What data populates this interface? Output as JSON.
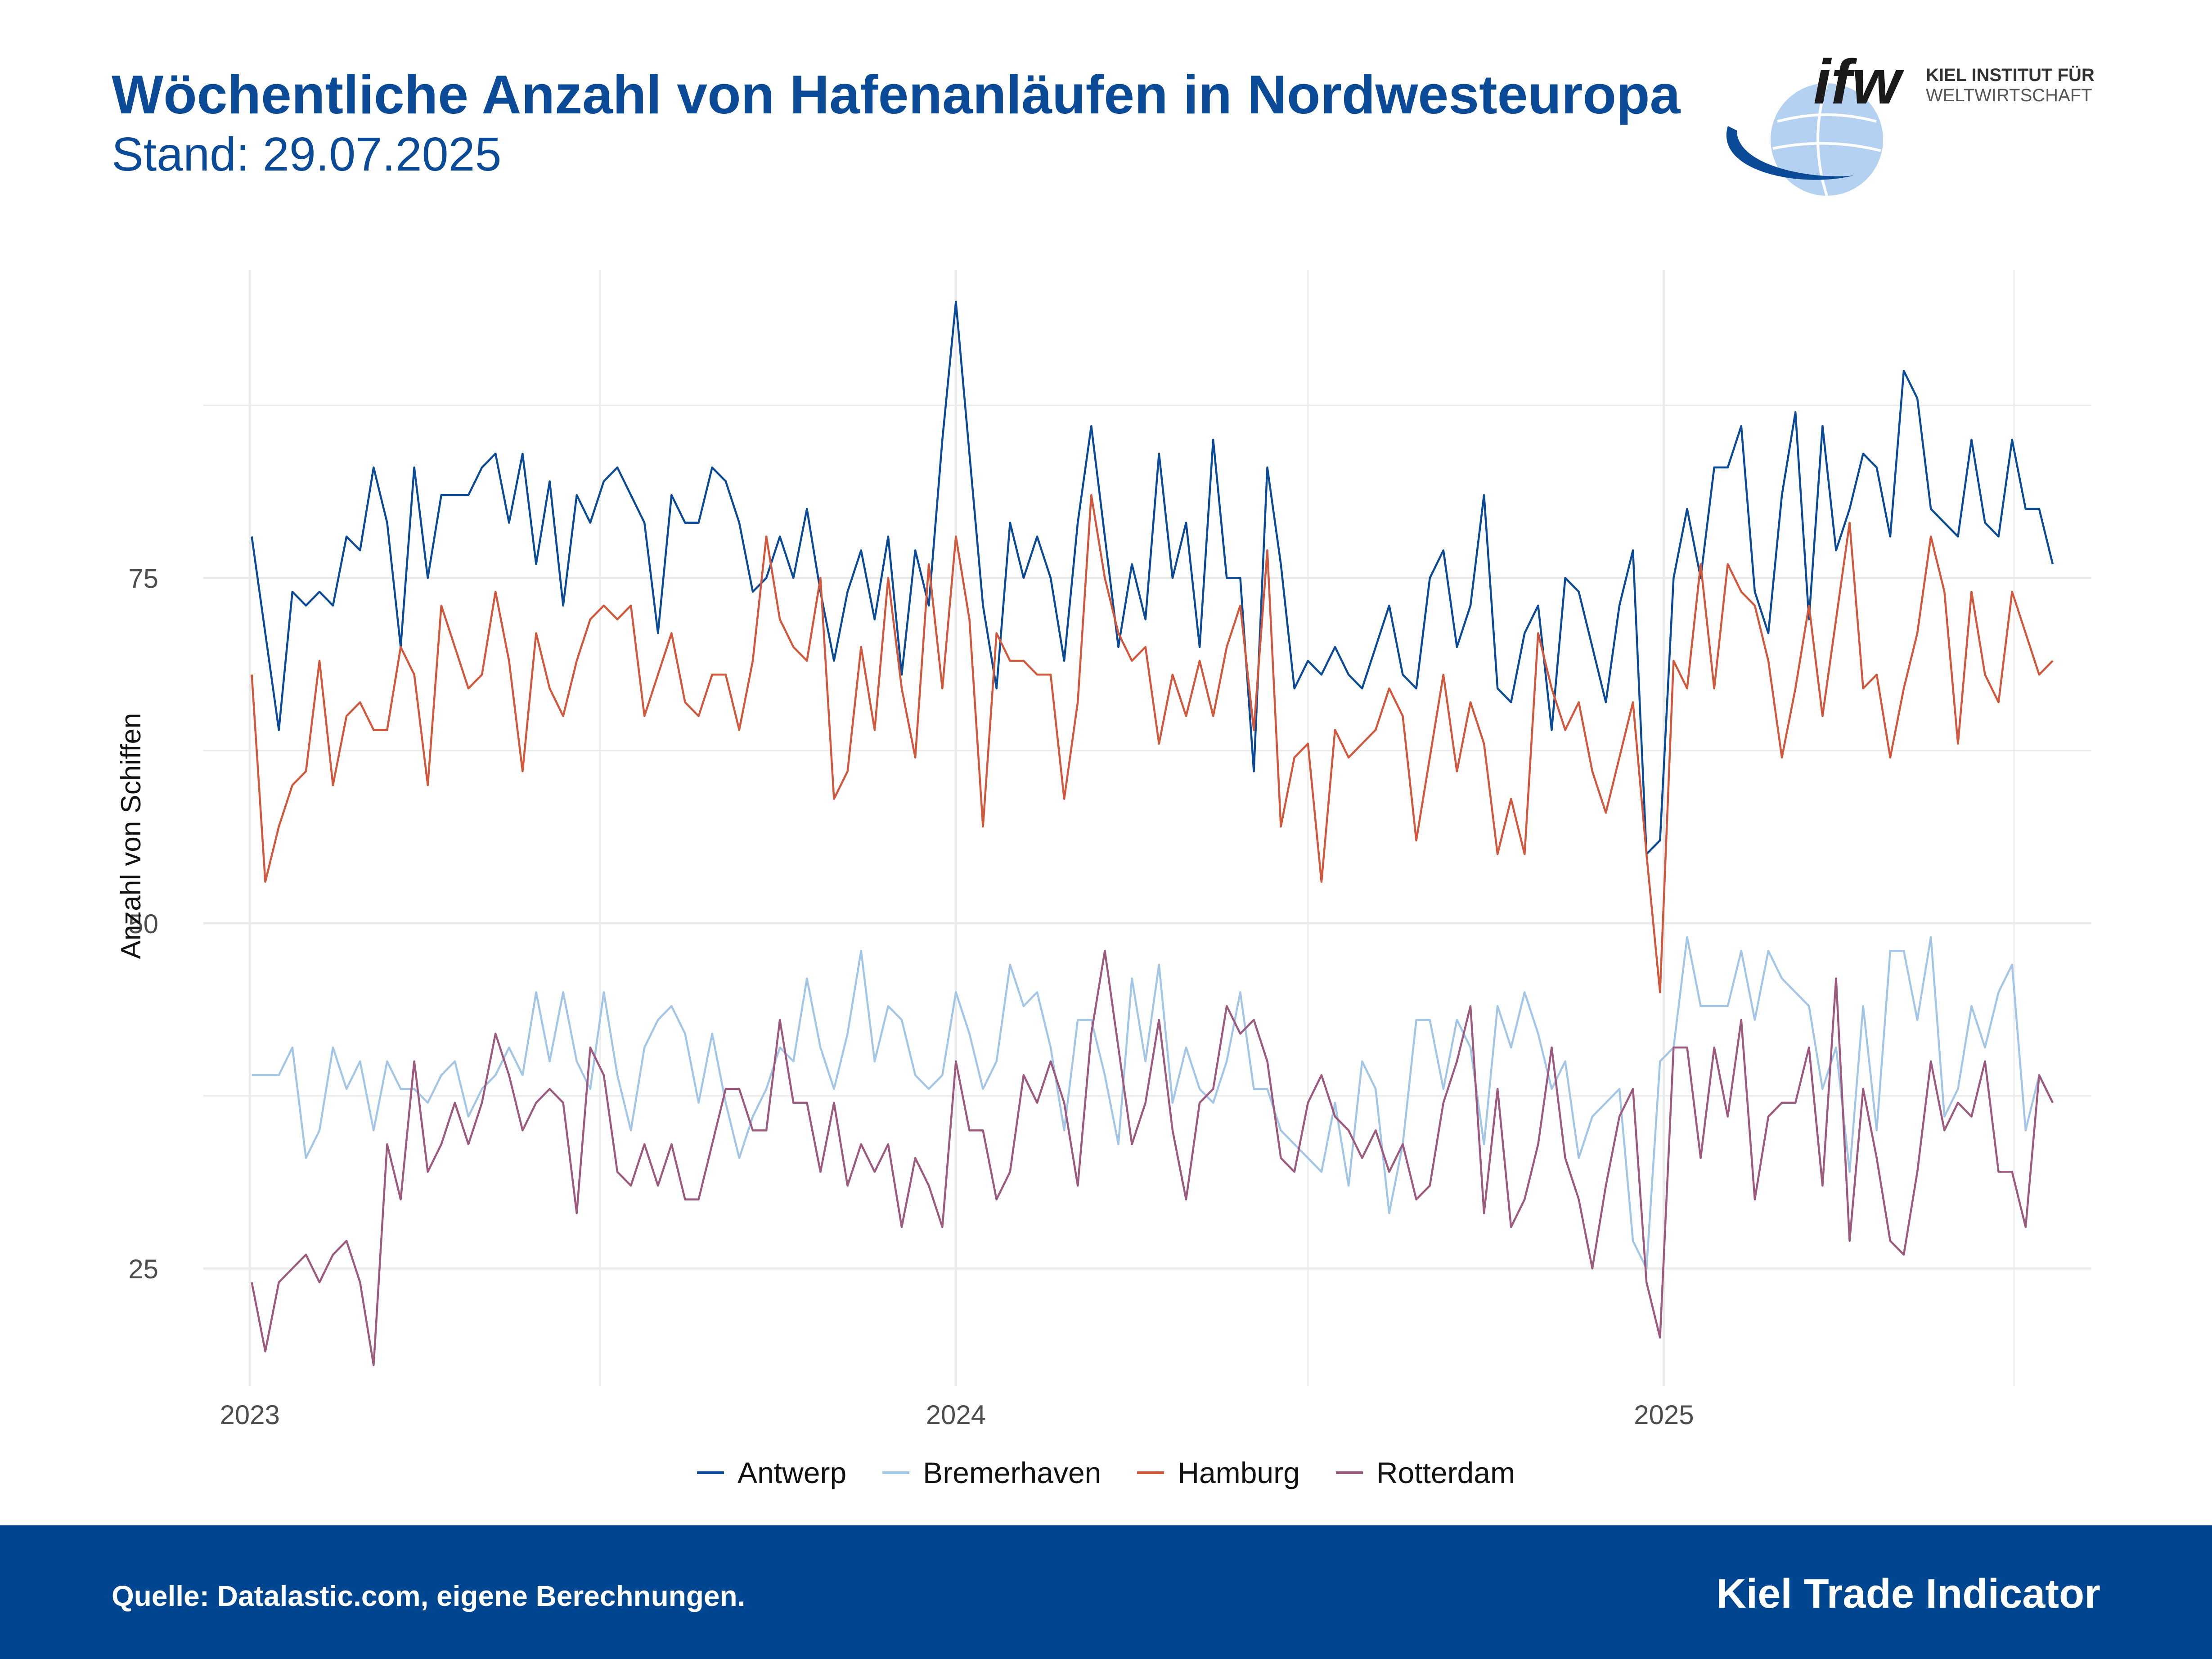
{
  "header": {
    "title": "Wöchentliche Anzahl von Hafenanläufen in Nordwesteuropa",
    "subtitle": "Stand: 29.07.2025"
  },
  "logo": {
    "mark": "ifw",
    "line1": "KIEL INSTITUT FÜR",
    "line2": "WELTWIRTSCHAFT",
    "icon": "globe-icon"
  },
  "footer": {
    "source": "Quelle: Datalastic.com, eigene Berechnungen.",
    "brand": "Kiel Trade Indicator"
  },
  "colors": {
    "brand_blue": "#00458f",
    "Antwerp": "#0a4a96",
    "Bremerhaven": "#a4c6e6",
    "Hamburg": "#d1583d",
    "Rotterdam": "#9b5a7e"
  },
  "chart_data": {
    "type": "line",
    "title": "Wöchentliche Anzahl von Hafenanläufen in Nordwesteuropa",
    "subtitle": "Stand: 29.07.2025",
    "xlabel": "",
    "ylabel": "Anzahl von Schiffen",
    "x_start": "2023-01-02",
    "x_step_days": 7,
    "x_ticks": [
      "2023",
      "2024",
      "2025"
    ],
    "x_range": [
      "2022-12-08",
      "2025-08-10"
    ],
    "y_ticks": [
      25,
      50,
      75
    ],
    "ylim": [
      16.5,
      97.3
    ],
    "grid": true,
    "legend": "bottom",
    "series": [
      {
        "name": "Antwerp",
        "color": "#0a4a96",
        "values": [
          78,
          71,
          64,
          74,
          73,
          74,
          73,
          78,
          77,
          83,
          79,
          70,
          83,
          75,
          81,
          81,
          81,
          83,
          84,
          79,
          84,
          76,
          82,
          73,
          81,
          79,
          82,
          83,
          81,
          79,
          71,
          81,
          79,
          79,
          83,
          82,
          79,
          74,
          75,
          78,
          75,
          80,
          74,
          69,
          74,
          77,
          72,
          78,
          68,
          77,
          73,
          85,
          95,
          84,
          73,
          67,
          79,
          75,
          78,
          75,
          69,
          79,
          86,
          78,
          70,
          76,
          72,
          84,
          75,
          79,
          70,
          85,
          75,
          75,
          61,
          83,
          76,
          67,
          69,
          68,
          70,
          68,
          67,
          70,
          73,
          68,
          67,
          75,
          77,
          70,
          73,
          81,
          67,
          66,
          71,
          73,
          64,
          75,
          74,
          70,
          66,
          73,
          77,
          55,
          56,
          75,
          80,
          75,
          83,
          83,
          86,
          74,
          71,
          81,
          87,
          72,
          86,
          77,
          80,
          84,
          83,
          78,
          90,
          88,
          80,
          79,
          78,
          85,
          79,
          78,
          85,
          80,
          80,
          76
        ]
      },
      {
        "name": "Bremerhaven",
        "color": "#a4c6e6",
        "values": [
          39,
          39,
          39,
          41,
          33,
          35,
          41,
          38,
          40,
          35,
          40,
          38,
          38,
          37,
          39,
          40,
          36,
          38,
          39,
          41,
          39,
          45,
          40,
          45,
          40,
          38,
          45,
          39,
          35,
          41,
          43,
          44,
          42,
          37,
          42,
          37,
          33,
          36,
          38,
          41,
          40,
          46,
          41,
          38,
          42,
          48,
          40,
          44,
          43,
          39,
          38,
          39,
          45,
          42,
          38,
          40,
          47,
          44,
          45,
          41,
          35,
          43,
          43,
          39,
          34,
          46,
          40,
          47,
          37,
          41,
          38,
          37,
          40,
          45,
          38,
          38,
          35,
          34,
          33,
          32,
          37,
          31,
          40,
          38,
          29,
          34,
          43,
          43,
          38,
          43,
          41,
          34,
          44,
          41,
          45,
          42,
          38,
          40,
          33,
          36,
          37,
          38,
          27,
          25,
          40,
          41,
          49,
          44,
          44,
          44,
          48,
          43,
          48,
          46,
          45,
          44,
          38,
          41,
          32,
          44,
          35,
          48,
          48,
          43,
          49,
          36,
          38,
          44,
          41,
          45,
          47,
          35,
          39,
          37
        ]
      },
      {
        "name": "Hamburg",
        "color": "#d1583d",
        "values": [
          68,
          53,
          57,
          60,
          61,
          69,
          60,
          65,
          66,
          64,
          64,
          70,
          68,
          60,
          73,
          70,
          67,
          68,
          74,
          69,
          61,
          71,
          67,
          65,
          69,
          72,
          73,
          72,
          73,
          65,
          68,
          71,
          66,
          65,
          68,
          68,
          64,
          69,
          78,
          72,
          70,
          69,
          75,
          59,
          61,
          70,
          64,
          75,
          67,
          62,
          76,
          67,
          78,
          72,
          57,
          71,
          69,
          69,
          68,
          68,
          59,
          66,
          81,
          75,
          71,
          69,
          70,
          63,
          68,
          65,
          69,
          65,
          70,
          73,
          64,
          77,
          57,
          62,
          63,
          53,
          64,
          62,
          63,
          64,
          67,
          65,
          56,
          62,
          68,
          61,
          66,
          63,
          55,
          59,
          55,
          71,
          67,
          64,
          66,
          61,
          58,
          62,
          66,
          55,
          45,
          69,
          67,
          76,
          67,
          76,
          74,
          73,
          69,
          62,
          67,
          73,
          65,
          72,
          79,
          67,
          68,
          62,
          67,
          71,
          78,
          74,
          63,
          74,
          68,
          66,
          74,
          71,
          68,
          69
        ]
      },
      {
        "name": "Rotterdam",
        "color": "#9b5a7e",
        "values": [
          24,
          19,
          24,
          25,
          26,
          24,
          26,
          27,
          24,
          18,
          34,
          30,
          40,
          32,
          34,
          37,
          34,
          37,
          42,
          39,
          35,
          37,
          38,
          37,
          29,
          41,
          39,
          32,
          31,
          34,
          31,
          34,
          30,
          30,
          34,
          38,
          38,
          35,
          35,
          43,
          37,
          37,
          32,
          37,
          31,
          34,
          32,
          34,
          28,
          33,
          31,
          28,
          40,
          35,
          35,
          30,
          32,
          39,
          37,
          40,
          37,
          31,
          42,
          48,
          41,
          34,
          37,
          43,
          35,
          30,
          37,
          38,
          44,
          42,
          43,
          40,
          33,
          32,
          37,
          39,
          36,
          35,
          33,
          35,
          32,
          34,
          30,
          31,
          37,
          40,
          44,
          29,
          38,
          28,
          30,
          34,
          41,
          33,
          30,
          25,
          31,
          36,
          38,
          24,
          20,
          41,
          41,
          33,
          41,
          36,
          43,
          30,
          36,
          37,
          37,
          41,
          31,
          46,
          27,
          38,
          33,
          27,
          26,
          32,
          40,
          35,
          37,
          36,
          40,
          32,
          32,
          28,
          39,
          37
        ]
      }
    ]
  }
}
